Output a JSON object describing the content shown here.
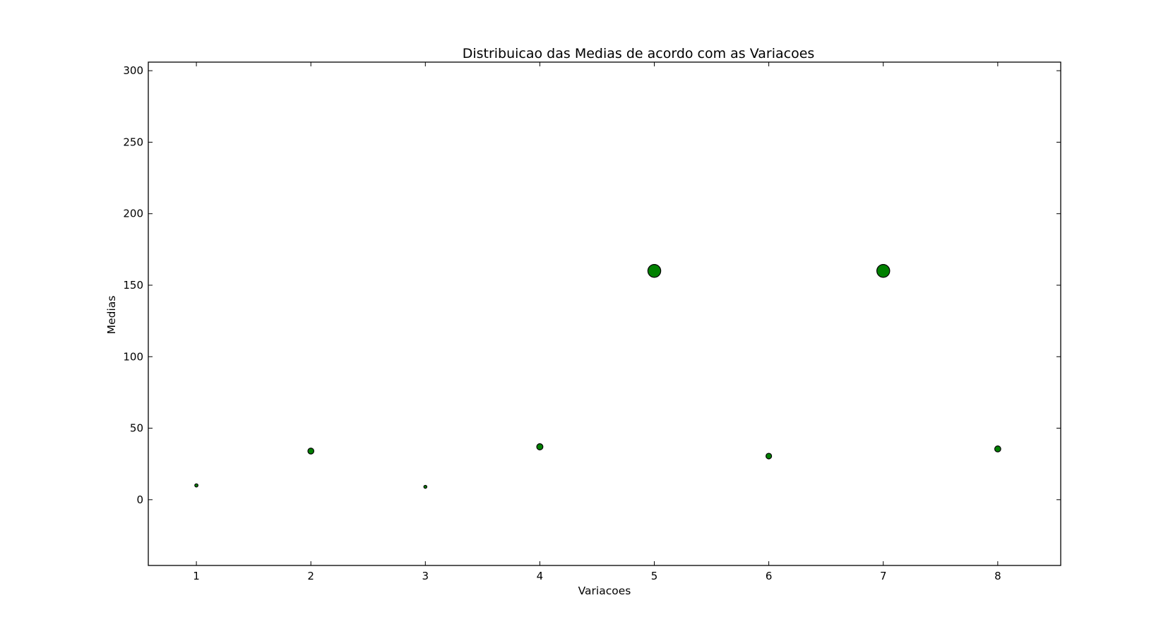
{
  "chart_data": {
    "type": "scatter",
    "title": "Distribuicao das Medias de acordo com as Variacoes",
    "xlabel": "Variacoes",
    "ylabel": "Medias",
    "xlim": [
      0.58,
      8.55
    ],
    "ylim": [
      -46,
      306
    ],
    "xticks": [
      1,
      2,
      3,
      4,
      5,
      6,
      7,
      8
    ],
    "yticks": [
      0,
      50,
      100,
      150,
      200,
      250,
      300
    ],
    "grid": false,
    "marker_color": "#008000",
    "marker_edge_color": "#000000",
    "points": [
      {
        "x": 1,
        "y": 10,
        "size": 10
      },
      {
        "x": 2,
        "y": 34,
        "size": 34
      },
      {
        "x": 3,
        "y": 9,
        "size": 9
      },
      {
        "x": 4,
        "y": 37,
        "size": 37
      },
      {
        "x": 5,
        "y": 160,
        "size": 160
      },
      {
        "x": 6,
        "y": 30.5,
        "size": 30.5
      },
      {
        "x": 7,
        "y": 160,
        "size": 160
      },
      {
        "x": 8,
        "y": 35.5,
        "size": 35.5
      }
    ]
  }
}
